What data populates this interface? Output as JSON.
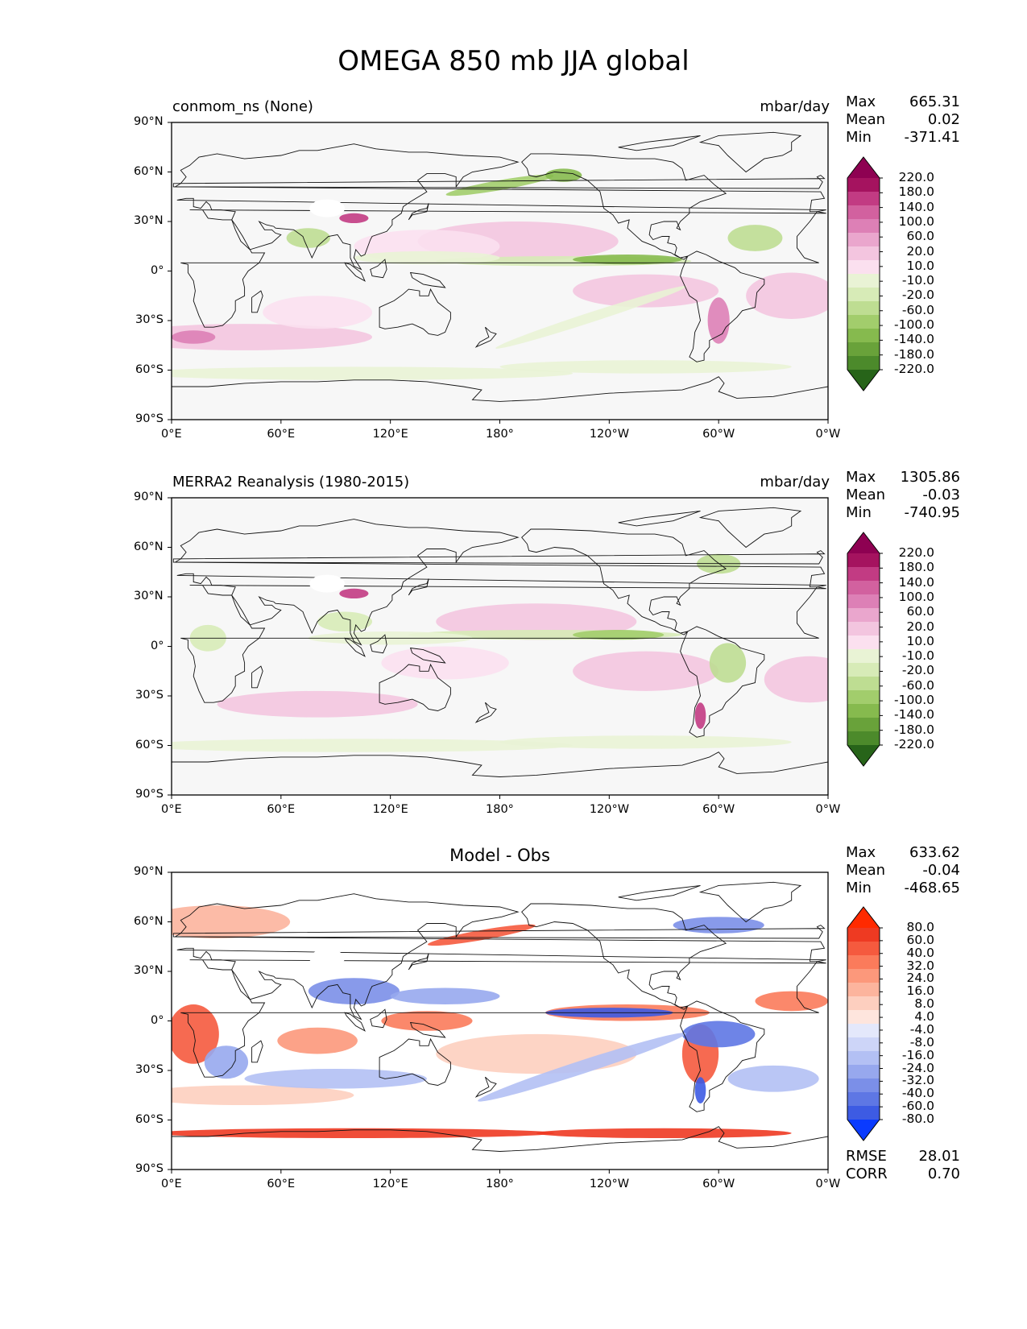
{
  "title": "OMEGA 850 mb JJA global",
  "x_ticks": [
    "0°E",
    "60°E",
    "120°E",
    "180°",
    "120°W",
    "60°W",
    "0°W"
  ],
  "y_ticks": [
    "90°N",
    "60°N",
    "30°N",
    "0°",
    "30°S",
    "60°S",
    "90°S"
  ],
  "colors": {
    "pos": [
      "#fbe0ef",
      "#f3c5df",
      "#eaa6cd",
      "#dd80b6",
      "#d2619f",
      "#c23b83",
      "#a5135f",
      "#8e0152"
    ],
    "neg": [
      "#e9f3d5",
      "#d7ebb7",
      "#bedd92",
      "#a2cd6c",
      "#86ba4e",
      "#69a23a",
      "#4c8a2b",
      "#276419"
    ],
    "white": "#f7f7f7",
    "diff_pos": [
      "#fee5dd",
      "#fdcfbf",
      "#fcb49d",
      "#fc987b",
      "#fb7b5b",
      "#f55a3e",
      "#ee3a22",
      "#ff2a00"
    ],
    "diff_neg": [
      "#e4e8fb",
      "#cdd5f8",
      "#b3c0f4",
      "#97a8ee",
      "#7b8fe8",
      "#5e77e4",
      "#3d5be3",
      "#0a3bff"
    ]
  },
  "panels": [
    {
      "id": "model",
      "title": "conmom_ns (None)",
      "units": "mbar/day",
      "stats": [
        {
          "k": "Max",
          "v": "665.31"
        },
        {
          "k": "Mean",
          "v": "0.02"
        },
        {
          "k": "Min",
          "v": "-371.41"
        }
      ],
      "colorbar": [
        "220.0",
        "180.0",
        "140.0",
        "100.0",
        "60.0",
        "20.0",
        "10.0",
        "-10.0",
        "-20.0",
        "-60.0",
        "-100.0",
        "-140.0",
        "-180.0",
        "-220.0"
      ]
    },
    {
      "id": "obs",
      "title": "MERRA2 Reanalysis (1980-2015)",
      "units": "mbar/day",
      "stats": [
        {
          "k": "Max",
          "v": "1305.86"
        },
        {
          "k": "Mean",
          "v": "-0.03"
        },
        {
          "k": "Min",
          "v": "-740.95"
        }
      ],
      "colorbar": [
        "220.0",
        "180.0",
        "140.0",
        "100.0",
        "60.0",
        "20.0",
        "10.0",
        "-10.0",
        "-20.0",
        "-60.0",
        "-100.0",
        "-140.0",
        "-180.0",
        "-220.0"
      ]
    },
    {
      "id": "diff",
      "title": "Model - Obs",
      "units": "",
      "stats": [
        {
          "k": "Max",
          "v": "633.62"
        },
        {
          "k": "Mean",
          "v": "-0.04"
        },
        {
          "k": "Min",
          "v": "-468.65"
        }
      ],
      "colorbar": [
        "80.0",
        "60.0",
        "40.0",
        "32.0",
        "24.0",
        "16.0",
        "8.0",
        "4.0",
        "-4.0",
        "-8.0",
        "-16.0",
        "-24.0",
        "-32.0",
        "-40.0",
        "-60.0",
        "-80.0"
      ],
      "metrics": [
        {
          "k": "RMSE",
          "v": "28.01"
        },
        {
          "k": "CORR",
          "v": "0.70"
        }
      ]
    }
  ]
}
